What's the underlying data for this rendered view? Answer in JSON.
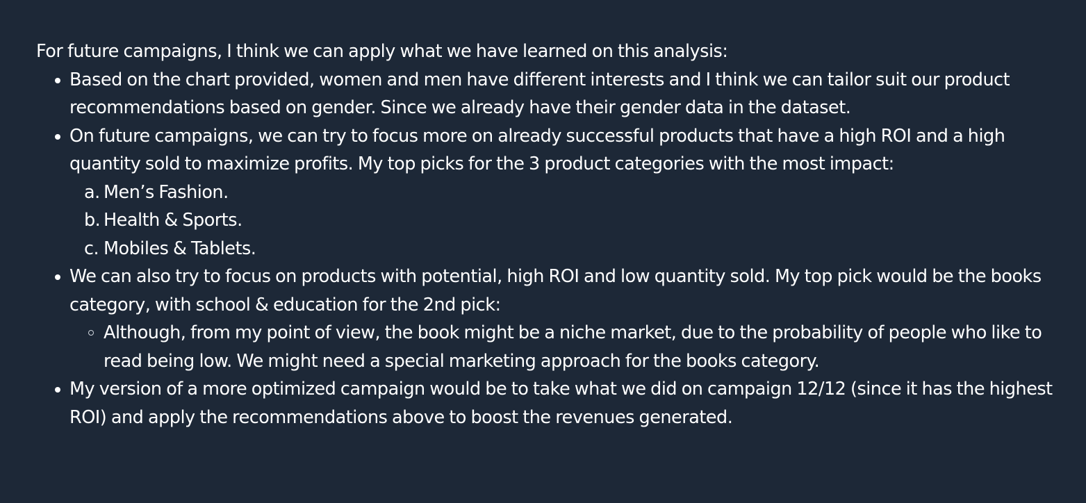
{
  "intro": "For future campaigns, I think we can apply what we have learned on this analysis:",
  "bullets": {
    "b1": "Based on the chart provided, women and men have different interests and I think we can tailor suit our product recommendations based on gender. Since we already have their gender data in the dataset.",
    "b2": "On future campaigns, we can try to focus more on already successful products that have a high ROI and a high quantity sold to maximize profits. My top picks for the 3 product categories with the most impact:",
    "b2_items": [
      {
        "marker": "a.",
        "text": "Men’s Fashion."
      },
      {
        "marker": "b.",
        "text": "Health & Sports."
      },
      {
        "marker": "c.",
        "text": "Mobiles & Tablets."
      }
    ],
    "b3": "We can also try to focus on products with potential, high ROI and low quantity sold. My top pick would be the books category, with school & education for the 2nd pick:",
    "b3_sub": "Although, from my point of view, the book might be a niche market, due to the probability of people who like to read being low. We might need a special marketing approach for the books category.",
    "b4": "My version of a more optimized campaign would be to take what we did on campaign 12/12 (since it has the highest ROI) and apply the recommendations above to boost the revenues generated."
  }
}
